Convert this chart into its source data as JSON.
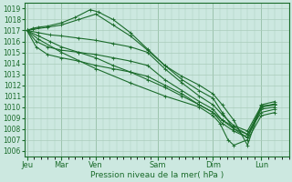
{
  "bg_color": "#cce8e0",
  "grid_color": "#aaccbb",
  "line_color": "#1a6b2a",
  "xlabel": "Pression niveau de la mer( hPa )",
  "ylim": [
    1005.5,
    1019.5
  ],
  "yticks": [
    1006,
    1007,
    1008,
    1009,
    1010,
    1011,
    1012,
    1013,
    1014,
    1015,
    1016,
    1017,
    1018,
    1019
  ],
  "xtick_labels": [
    "Jeu",
    "Mar",
    "Ven",
    "Sam",
    "Dim",
    "Lun"
  ],
  "xtick_positions": [
    0,
    30,
    60,
    114,
    162,
    204
  ],
  "xlim": [
    -2,
    228
  ],
  "lines": [
    {
      "x": [
        0,
        5,
        10,
        18,
        30,
        42,
        55,
        62,
        75,
        90,
        105,
        120,
        135,
        150,
        162,
        170,
        180,
        192,
        204,
        216
      ],
      "y": [
        1017.0,
        1017.2,
        1017.3,
        1017.4,
        1017.7,
        1018.2,
        1018.9,
        1018.7,
        1018.0,
        1016.8,
        1015.3,
        1013.8,
        1012.8,
        1012.0,
        1011.2,
        1010.2,
        1008.8,
        1006.5,
        1010.2,
        1010.5
      ]
    },
    {
      "x": [
        0,
        5,
        18,
        30,
        45,
        60,
        75,
        90,
        105,
        120,
        135,
        150,
        162,
        170,
        180,
        192,
        204,
        216
      ],
      "y": [
        1017.0,
        1017.1,
        1017.3,
        1017.5,
        1018.0,
        1018.5,
        1017.5,
        1016.5,
        1015.2,
        1013.8,
        1012.5,
        1011.5,
        1010.8,
        1009.5,
        1008.0,
        1007.2,
        1010.0,
        1010.3
      ]
    },
    {
      "x": [
        0,
        10,
        20,
        30,
        45,
        60,
        75,
        90,
        105,
        120,
        135,
        150,
        162,
        170,
        180,
        192,
        204,
        216
      ],
      "y": [
        1017.0,
        1016.8,
        1016.6,
        1016.5,
        1016.3,
        1016.1,
        1015.8,
        1015.5,
        1015.0,
        1013.5,
        1012.2,
        1011.0,
        1010.2,
        1009.3,
        1008.3,
        1007.8,
        1010.1,
        1010.2
      ]
    },
    {
      "x": [
        0,
        8,
        18,
        30,
        45,
        60,
        75,
        90,
        105,
        120,
        135,
        150,
        162,
        170,
        180,
        192,
        204,
        216
      ],
      "y": [
        1017.0,
        1016.0,
        1015.5,
        1015.2,
        1015.0,
        1014.8,
        1014.5,
        1014.2,
        1013.8,
        1012.5,
        1011.5,
        1010.5,
        1009.8,
        1008.8,
        1008.0,
        1007.5,
        1010.0,
        1010.2
      ]
    },
    {
      "x": [
        0,
        8,
        18,
        30,
        45,
        60,
        75,
        90,
        105,
        120,
        135,
        150,
        162,
        170,
        180,
        192,
        204,
        216
      ],
      "y": [
        1017.0,
        1015.5,
        1014.8,
        1014.5,
        1014.2,
        1013.8,
        1013.5,
        1013.2,
        1012.8,
        1012.0,
        1011.2,
        1010.2,
        1009.5,
        1008.5,
        1007.8,
        1007.2,
        1009.8,
        1010.0
      ]
    },
    {
      "x": [
        0,
        10,
        20,
        30,
        45,
        60,
        75,
        90,
        105,
        120,
        135,
        150,
        162,
        170,
        180,
        192,
        204,
        216
      ],
      "y": [
        1017.0,
        1016.5,
        1016.0,
        1015.5,
        1015.0,
        1014.5,
        1013.8,
        1013.2,
        1012.5,
        1011.8,
        1011.0,
        1010.2,
        1009.5,
        1008.8,
        1008.2,
        1007.5,
        1009.5,
        1009.8
      ]
    },
    {
      "x": [
        0,
        10,
        30,
        60,
        90,
        120,
        150,
        162,
        168,
        175,
        180,
        192,
        204,
        216
      ],
      "y": [
        1017.0,
        1016.2,
        1015.0,
        1013.5,
        1012.2,
        1011.0,
        1010.0,
        1009.2,
        1008.5,
        1007.0,
        1006.5,
        1007.0,
        1009.2,
        1009.5
      ]
    }
  ]
}
